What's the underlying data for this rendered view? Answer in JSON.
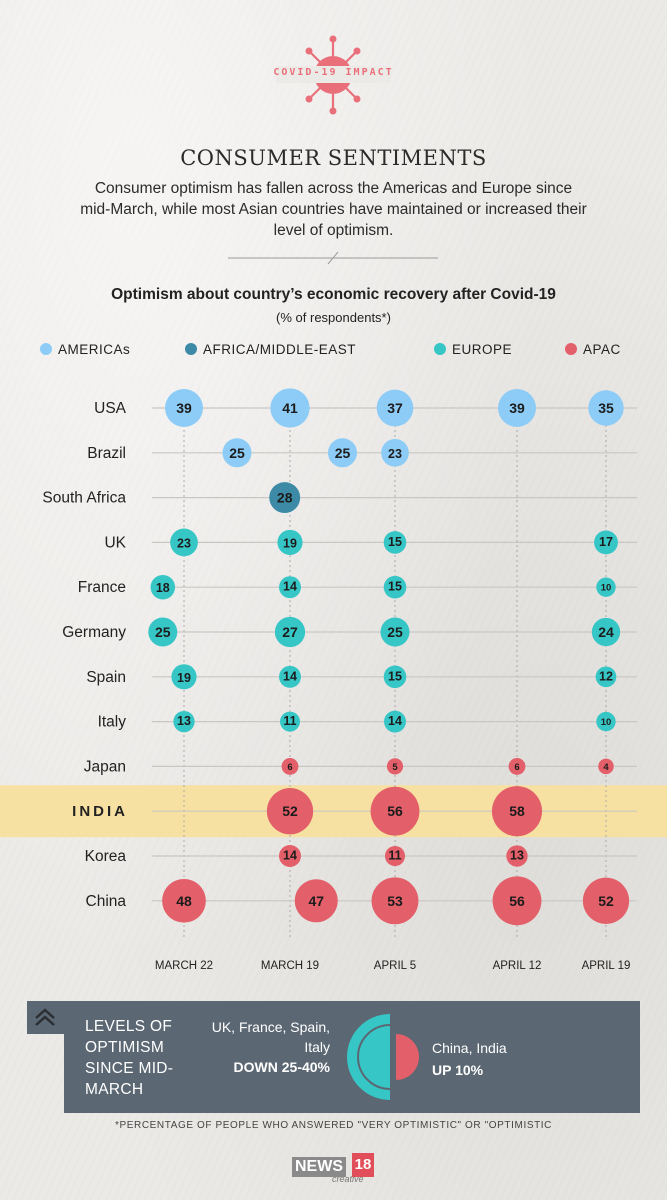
{
  "header": {
    "tag": "COVID-19 IMPACT",
    "title": "CONSUMER SENTIMENTS",
    "subtitle": "Consumer optimism has fallen across the Americas and Europe since mid-March, while most Asian countries have maintained or increased their level of optimism."
  },
  "colors": {
    "AMERICAs": "#8cccf6",
    "AFRICA/MIDDLE-EAST": "#3c8aa6",
    "EUROPE": "#37c6c6",
    "APAC": "#e35f69",
    "highlight": "#f6e1a3",
    "panel": "#5b6873"
  },
  "chart_data": {
    "type": "bubble-table",
    "title": "Optimism about country’s economic recovery after Covid-19",
    "subtitle": "(% of respondents*)",
    "legend": [
      "AMERICAs",
      "AFRICA/MIDDLE-EAST",
      "EUROPE",
      "APAC"
    ],
    "x_labels": [
      "MARCH 22",
      "MARCH 19",
      "APRIL 5",
      "APRIL 12",
      "APRIL 19"
    ],
    "highlight_row": "INDIA",
    "rows": [
      {
        "country": "USA",
        "region": "AMERICAs",
        "points": [
          {
            "label": "39",
            "value": 39,
            "pos": 0
          },
          {
            "label": "41",
            "value": 41,
            "pos": 1
          },
          {
            "label": "37",
            "value": 37,
            "pos": 2
          },
          {
            "label": "39",
            "value": 39,
            "pos": 3
          },
          {
            "label": "35",
            "value": 35,
            "pos": 4
          }
        ]
      },
      {
        "country": "Brazil",
        "region": "AMERICAs",
        "points": [
          {
            "label": "25",
            "value": 25,
            "pos": 0.5
          },
          {
            "label": "25",
            "value": 25,
            "pos": 1.5
          },
          {
            "label": "23",
            "value": 23,
            "pos": 2
          }
        ]
      },
      {
        "country": "South Africa",
        "region": "AFRICA/MIDDLE-EAST",
        "points": [
          {
            "label": "28",
            "value": 28,
            "pos": 0.95
          }
        ]
      },
      {
        "country": "UK",
        "region": "EUROPE",
        "points": [
          {
            "label": "23",
            "value": 23,
            "pos": 0
          },
          {
            "label": "19",
            "value": 19,
            "pos": 1
          },
          {
            "label": "15",
            "value": 15,
            "pos": 2
          },
          {
            "label": "17",
            "value": 17,
            "pos": 4
          }
        ]
      },
      {
        "country": "France",
        "region": "EUROPE",
        "points": [
          {
            "label": "18",
            "value": 18,
            "pos": -0.2
          },
          {
            "label": "14",
            "value": 14,
            "pos": 1
          },
          {
            "label": "15",
            "value": 15,
            "pos": 2
          },
          {
            "label": "10",
            "value": 10,
            "pos": 4
          }
        ]
      },
      {
        "country": "Germany",
        "region": "EUROPE",
        "points": [
          {
            "label": "25",
            "value": 25,
            "pos": -0.2
          },
          {
            "label": "27",
            "value": 27,
            "pos": 1
          },
          {
            "label": "25",
            "value": 25,
            "pos": 2
          },
          {
            "label": "24",
            "value": 24,
            "pos": 4
          }
        ]
      },
      {
        "country": "Spain",
        "region": "EUROPE",
        "points": [
          {
            "label": "19",
            "value": 19,
            "pos": 0
          },
          {
            "label": "14",
            "value": 14,
            "pos": 1
          },
          {
            "label": "15",
            "value": 15,
            "pos": 2
          },
          {
            "label": "12",
            "value": 12,
            "pos": 4
          }
        ]
      },
      {
        "country": "Italy",
        "region": "EUROPE",
        "points": [
          {
            "label": "13",
            "value": 13,
            "pos": 0
          },
          {
            "label": "11",
            "value": 11,
            "pos": 1
          },
          {
            "label": "14",
            "value": 14,
            "pos": 2
          },
          {
            "label": "10",
            "value": 10,
            "pos": 4
          }
        ]
      },
      {
        "country": "Japan",
        "region": "APAC",
        "points": [
          {
            "label": "6",
            "value": 6,
            "pos": 1
          },
          {
            "label": "5",
            "value": 5,
            "pos": 2
          },
          {
            "label": "6",
            "value": 6,
            "pos": 3
          },
          {
            "label": "4",
            "value": 4,
            "pos": 4
          }
        ]
      },
      {
        "country": "INDIA",
        "region": "APAC",
        "points": [
          {
            "label": "52",
            "value": 52,
            "pos": 1
          },
          {
            "label": "56",
            "value": 56,
            "pos": 2
          },
          {
            "label": "58",
            "value": 58,
            "pos": 3
          }
        ]
      },
      {
        "country": "Korea",
        "region": "APAC",
        "points": [
          {
            "label": "14",
            "value": 14,
            "pos": 1
          },
          {
            "label": "11",
            "value": 11,
            "pos": 2
          },
          {
            "label": "13",
            "value": 13,
            "pos": 3
          }
        ]
      },
      {
        "country": "China",
        "region": "APAC",
        "points": [
          {
            "label": "48",
            "value": 48,
            "pos": 0
          },
          {
            "label": "47",
            "value": 47,
            "pos": 1.25
          },
          {
            "label": "53",
            "value": 53,
            "pos": 2
          },
          {
            "label": "56",
            "value": 56,
            "pos": 3
          },
          {
            "label": "52",
            "value": 52,
            "pos": 4
          }
        ]
      }
    ]
  },
  "summary": {
    "heading": "LEVELS OF OPTIMISM SINCE MID-MARCH",
    "left_countries": "UK, France, Spain, Italy",
    "left_change": "DOWN 25-40%",
    "right_countries": "China, India",
    "right_change": "UP 10%"
  },
  "footnote": "*PERCENTAGE OF PEOPLE WHO ANSWERED \"VERY OPTIMISTIC\" OR \"OPTIMISTIC",
  "logo": {
    "news": "NEWS",
    "number": "18",
    "sub": "creative"
  }
}
